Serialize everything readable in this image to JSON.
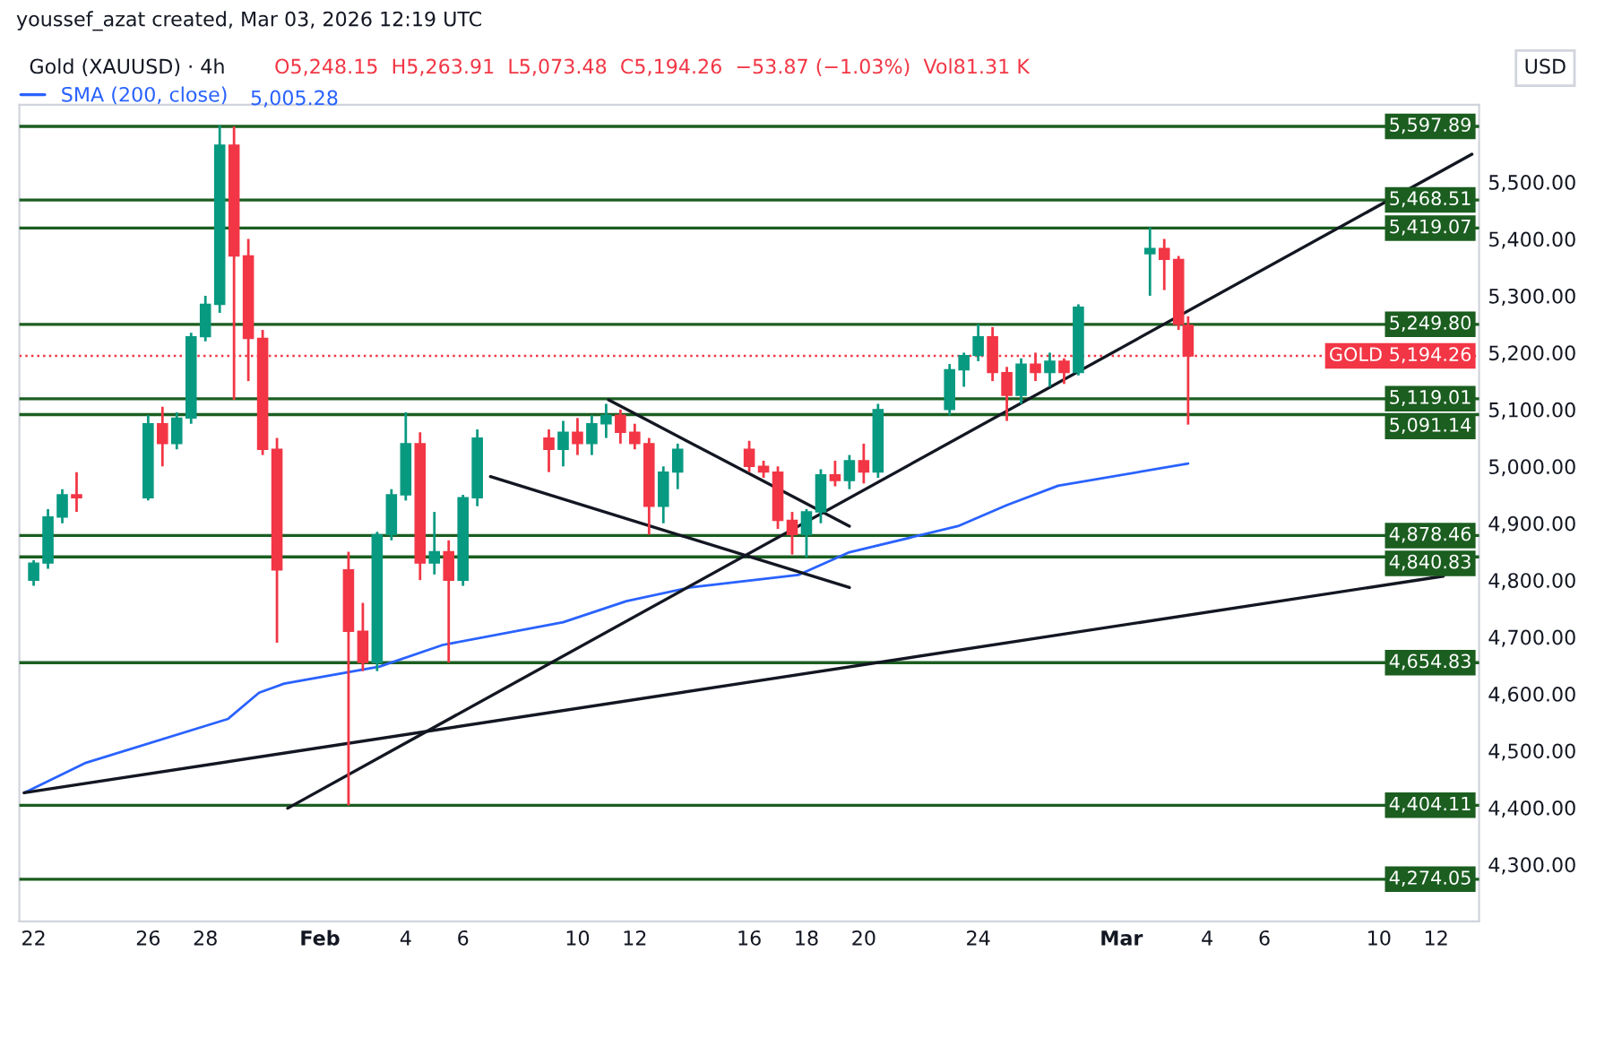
{
  "chart_data": {
    "type": "candlestick",
    "title": "Gold (XAUUSD) · 4h",
    "subtitle": "O5,248.15  H5,263.91  L5,073.48  C5,194.26  −53.87 (−1.03%)  Vol81.31 K",
    "ylabel": "USD",
    "annotations": [
      "youssef_azat created, Mar 03, 2026 12:19 UTC",
      "5,005.28"
    ],
    "x": [
      "2026-01-22T00:00",
      "2026-01-22T12:00",
      "2026-01-23T00:00",
      "2026-01-23T12:00",
      "2026-01-26T00:00",
      "2026-01-26T12:00",
      "2026-01-27T00:00",
      "2026-01-27T12:00",
      "2026-01-28T00:00",
      "2026-01-28T12:00",
      "2026-01-29T00:00",
      "2026-01-29T12:00",
      "2026-01-30T00:00",
      "2026-01-30T12:00",
      "2026-02-02T00:00",
      "2026-02-02T12:00",
      "2026-02-03T00:00",
      "2026-02-03T12:00",
      "2026-02-04T00:00",
      "2026-02-04T12:00",
      "2026-02-05T00:00",
      "2026-02-05T12:00",
      "2026-02-06T00:00",
      "2026-02-06T12:00",
      "2026-02-09T00:00",
      "2026-02-09T12:00",
      "2026-02-10T00:00",
      "2026-02-10T12:00",
      "2026-02-11T00:00",
      "2026-02-11T12:00",
      "2026-02-12T00:00",
      "2026-02-12T12:00",
      "2026-02-13T00:00",
      "2026-02-13T12:00",
      "2026-02-16T00:00",
      "2026-02-16T12:00",
      "2026-02-17T00:00",
      "2026-02-17T12:00",
      "2026-02-18T00:00",
      "2026-02-18T12:00",
      "2026-02-19T00:00",
      "2026-02-19T12:00",
      "2026-02-20T00:00",
      "2026-02-20T12:00",
      "2026-02-23T00:00",
      "2026-02-23T12:00",
      "2026-02-24T00:00",
      "2026-02-24T12:00",
      "2026-02-25T00:00",
      "2026-02-25T12:00",
      "2026-02-26T00:00",
      "2026-02-26T12:00",
      "2026-02-27T00:00",
      "2026-02-27T12:00",
      "2026-03-02T00:00",
      "2026-03-02T12:00",
      "2026-03-03T00:00",
      "2026-03-03T08:00"
    ],
    "ohlc": [
      [
        4800,
        4835,
        4790,
        4830
      ],
      [
        4830,
        4925,
        4820,
        4911
      ],
      [
        4911,
        4960,
        4900,
        4950
      ],
      [
        4950,
        4990,
        4920,
        4945
      ],
      [
        4945,
        5090,
        4940,
        5075
      ],
      [
        5075,
        5105,
        5000,
        5040
      ],
      [
        5040,
        5095,
        5030,
        5085
      ],
      [
        5085,
        5235,
        5075,
        5228
      ],
      [
        5228,
        5300,
        5220,
        5285
      ],
      [
        5285,
        5600,
        5270,
        5565
      ],
      [
        5565,
        5598,
        5117,
        5370
      ],
      [
        5370,
        5400,
        5150,
        5225
      ],
      [
        5225,
        5240,
        5020,
        5030
      ],
      [
        5030,
        5050,
        4690,
        4818
      ],
      [
        4818,
        4850,
        4404,
        4710
      ],
      [
        4710,
        4760,
        4640,
        4655
      ],
      [
        4655,
        4885,
        4640,
        4880
      ],
      [
        4880,
        4960,
        4870,
        4950
      ],
      [
        4950,
        5095,
        4940,
        5040
      ],
      [
        5040,
        5060,
        4800,
        4830
      ],
      [
        4830,
        4920,
        4810,
        4850
      ],
      [
        4850,
        4870,
        4655,
        4800
      ],
      [
        4800,
        4950,
        4790,
        4945
      ],
      [
        4945,
        5065,
        4930,
        5050
      ],
      [
        5050,
        5065,
        4990,
        5030
      ],
      [
        5030,
        5080,
        5000,
        5060
      ],
      [
        5060,
        5085,
        5020,
        5040
      ],
      [
        5040,
        5090,
        5020,
        5075
      ],
      [
        5075,
        5110,
        5050,
        5090
      ],
      [
        5090,
        5100,
        5040,
        5060
      ],
      [
        5060,
        5075,
        5030,
        5040
      ],
      [
        5040,
        5050,
        4880,
        4930
      ],
      [
        4930,
        5000,
        4900,
        4990
      ],
      [
        4990,
        5040,
        4960,
        5030
      ],
      [
        5030,
        5045,
        4990,
        5000
      ],
      [
        5000,
        5010,
        4980,
        4990
      ],
      [
        4990,
        5000,
        4890,
        4905
      ],
      [
        4905,
        4920,
        4845,
        4880
      ],
      [
        4880,
        4925,
        4840,
        4920
      ],
      [
        4920,
        4995,
        4900,
        4985
      ],
      [
        4985,
        5010,
        4965,
        4975
      ],
      [
        4975,
        5020,
        4960,
        5010
      ],
      [
        5010,
        5040,
        4970,
        4990
      ],
      [
        4990,
        5110,
        4980,
        5100
      ],
      [
        5100,
        5180,
        5090,
        5170
      ],
      [
        5170,
        5200,
        5140,
        5195
      ],
      [
        5195,
        5250,
        5185,
        5228
      ],
      [
        5228,
        5245,
        5150,
        5165
      ],
      [
        5165,
        5175,
        5080,
        5125
      ],
      [
        5125,
        5190,
        5110,
        5180
      ],
      [
        5180,
        5200,
        5150,
        5165
      ],
      [
        5165,
        5200,
        5140,
        5185
      ],
      [
        5185,
        5190,
        5145,
        5165
      ],
      [
        5165,
        5285,
        5160,
        5280
      ],
      [
        5374,
        5420,
        5300,
        5383
      ],
      [
        5383,
        5400,
        5310,
        5364
      ],
      [
        5364,
        5370,
        5240,
        5250
      ],
      [
        5248.15,
        5263.91,
        5073.48,
        5194.26
      ]
    ],
    "colors": [
      "#089981",
      "#089981",
      "#089981",
      "#f23645",
      "#089981",
      "#f23645",
      "#089981",
      "#089981",
      "#089981",
      "#089981",
      "#f23645",
      "#f23645",
      "#f23645",
      "#f23645",
      "#f23645",
      "#f23645",
      "#089981",
      "#089981",
      "#089981",
      "#f23645",
      "#089981",
      "#f23645",
      "#089981",
      "#089981",
      "#f23645",
      "#089981",
      "#f23645",
      "#089981",
      "#089981",
      "#f23645",
      "#f23645",
      "#f23645",
      "#089981",
      "#089981",
      "#f23645",
      "#f23645",
      "#f23645",
      "#f23645",
      "#089981",
      "#089981",
      "#f23645",
      "#089981",
      "#f23645",
      "#089981",
      "#089981",
      "#089981",
      "#089981",
      "#f23645",
      "#f23645",
      "#089981",
      "#f23645",
      "#089981",
      "#f23645",
      "#089981",
      "#089981",
      "#f23645",
      "#f23645",
      "#f23645"
    ],
    "series": [
      {
        "type": "line",
        "name": "SMA (200, close)",
        "color": "#2962ff",
        "x": [
          "2026-01-21T16:00",
          "2026-01-23T20:00",
          "2026-01-28T19:00",
          "2026-01-29T21:00",
          "2026-01-30T18:00",
          "2026-02-03T02:00",
          "2026-02-05T07:00",
          "2026-02-09T12:00",
          "2026-02-11T17:00",
          "2026-02-13T22:00",
          "2026-02-17T17:00",
          "2026-02-19T12:00",
          "2026-02-23T07:00",
          "2026-02-25T00:00",
          "2026-02-26T19:00",
          "2026-03-03T08:00"
        ],
        "values": [
          4426,
          4479,
          4556,
          4602,
          4618,
          4648,
          4686,
          4726,
          4763,
          4787,
          4809,
          4849,
          4895,
          4932,
          4966,
          5005
        ]
      },
      {
        "type": "line",
        "color": "#131722",
        "x": [
          "2026-01-21T16:00",
          "2026-03-12T06:00"
        ],
        "values": [
          4426,
          4807
        ]
      },
      {
        "type": "line",
        "color": "#131722",
        "x": [
          "2026-01-30T21:00",
          "2026-03-13T06:00"
        ],
        "values": [
          4399,
          5549
        ]
      },
      {
        "type": "line",
        "color": "#131722",
        "x": [
          "2026-02-11T02:00",
          "2026-02-19T12:00"
        ],
        "values": [
          5117,
          4895
        ]
      },
      {
        "type": "line",
        "color": "#131722",
        "x": [
          "2026-02-06T23:00",
          "2026-02-19T12:00"
        ],
        "values": [
          4982,
          4787
        ]
      }
    ],
    "ref_lines": [
      {
        "axis": "y",
        "value": 5597.89,
        "label": "5,597.89",
        "color": "#1b5e20"
      },
      {
        "axis": "y",
        "value": 5468.51,
        "label": "5,468.51",
        "color": "#1b5e20"
      },
      {
        "axis": "y",
        "value": 5419.07,
        "label": "5,419.07",
        "color": "#1b5e20"
      },
      {
        "axis": "y",
        "value": 5249.8,
        "label": "5,249.80",
        "color": "#1b5e20"
      },
      {
        "axis": "y",
        "value": 5194.26,
        "label": "GOLD 5,194.26",
        "color": "#f23645",
        "line_style": "dotted"
      },
      {
        "axis": "y",
        "value": 5119.01,
        "label": "5,119.01",
        "color": "#1b5e20"
      },
      {
        "axis": "y",
        "value": 5091.14,
        "label": "5,091.14",
        "color": "#1b5e20"
      },
      {
        "axis": "y",
        "value": 4878.46,
        "label": "4,878.46",
        "color": "#1b5e20"
      },
      {
        "axis": "y",
        "value": 4840.83,
        "label": "4,840.83",
        "color": "#1b5e20"
      },
      {
        "axis": "y",
        "value": 4654.83,
        "label": "4,654.83",
        "color": "#1b5e20"
      },
      {
        "axis": "y",
        "value": 4404.11,
        "label": "4,404.11",
        "color": "#1b5e20"
      },
      {
        "axis": "y",
        "value": 4274.05,
        "label": "4,274.05",
        "color": "#1b5e20"
      }
    ],
    "xlim": [
      "2026-01-21T12:00",
      "2026-03-13T12:00"
    ],
    "xticks": [
      {
        "value": "2026-01-22",
        "label": "22"
      },
      {
        "value": "2026-01-26",
        "label": "26"
      },
      {
        "value": "2026-01-28",
        "label": "28"
      },
      {
        "value": "2026-02-01",
        "label": "Feb"
      },
      {
        "value": "2026-02-04",
        "label": "4"
      },
      {
        "value": "2026-02-06",
        "label": "6"
      },
      {
        "value": "2026-02-10",
        "label": "10"
      },
      {
        "value": "2026-02-12",
        "label": "12"
      },
      {
        "value": "2026-02-16",
        "label": "16"
      },
      {
        "value": "2026-02-18",
        "label": "18"
      },
      {
        "value": "2026-02-20",
        "label": "20"
      },
      {
        "value": "2026-02-24",
        "label": "24"
      },
      {
        "value": "2026-03-01",
        "label": "Mar"
      },
      {
        "value": "2026-03-04",
        "label": "4"
      },
      {
        "value": "2026-03-06",
        "label": "6"
      },
      {
        "value": "2026-03-10",
        "label": "10"
      },
      {
        "value": "2026-03-12",
        "label": "12"
      }
    ],
    "ylim": [
      4200,
      5636
    ],
    "yticks": [
      {
        "value": 4300,
        "label": "4,300.00"
      },
      {
        "value": 4400,
        "label": "4,400.00"
      },
      {
        "value": 4500,
        "label": "4,500.00"
      },
      {
        "value": 4600,
        "label": "4,600.00"
      },
      {
        "value": 4700,
        "label": "4,700.00"
      },
      {
        "value": 4800,
        "label": "4,800.00"
      },
      {
        "value": 4900,
        "label": "4,900.00"
      },
      {
        "value": 5000,
        "label": "5,000.00"
      },
      {
        "value": 5100,
        "label": "5,100.00"
      },
      {
        "value": 5200,
        "label": "5,200.00"
      },
      {
        "value": 5300,
        "label": "5,300.00"
      },
      {
        "value": 5400,
        "label": "5,400.00"
      },
      {
        "value": 5500,
        "label": "5,500.00"
      }
    ],
    "grid": false,
    "legend": "top left"
  }
}
